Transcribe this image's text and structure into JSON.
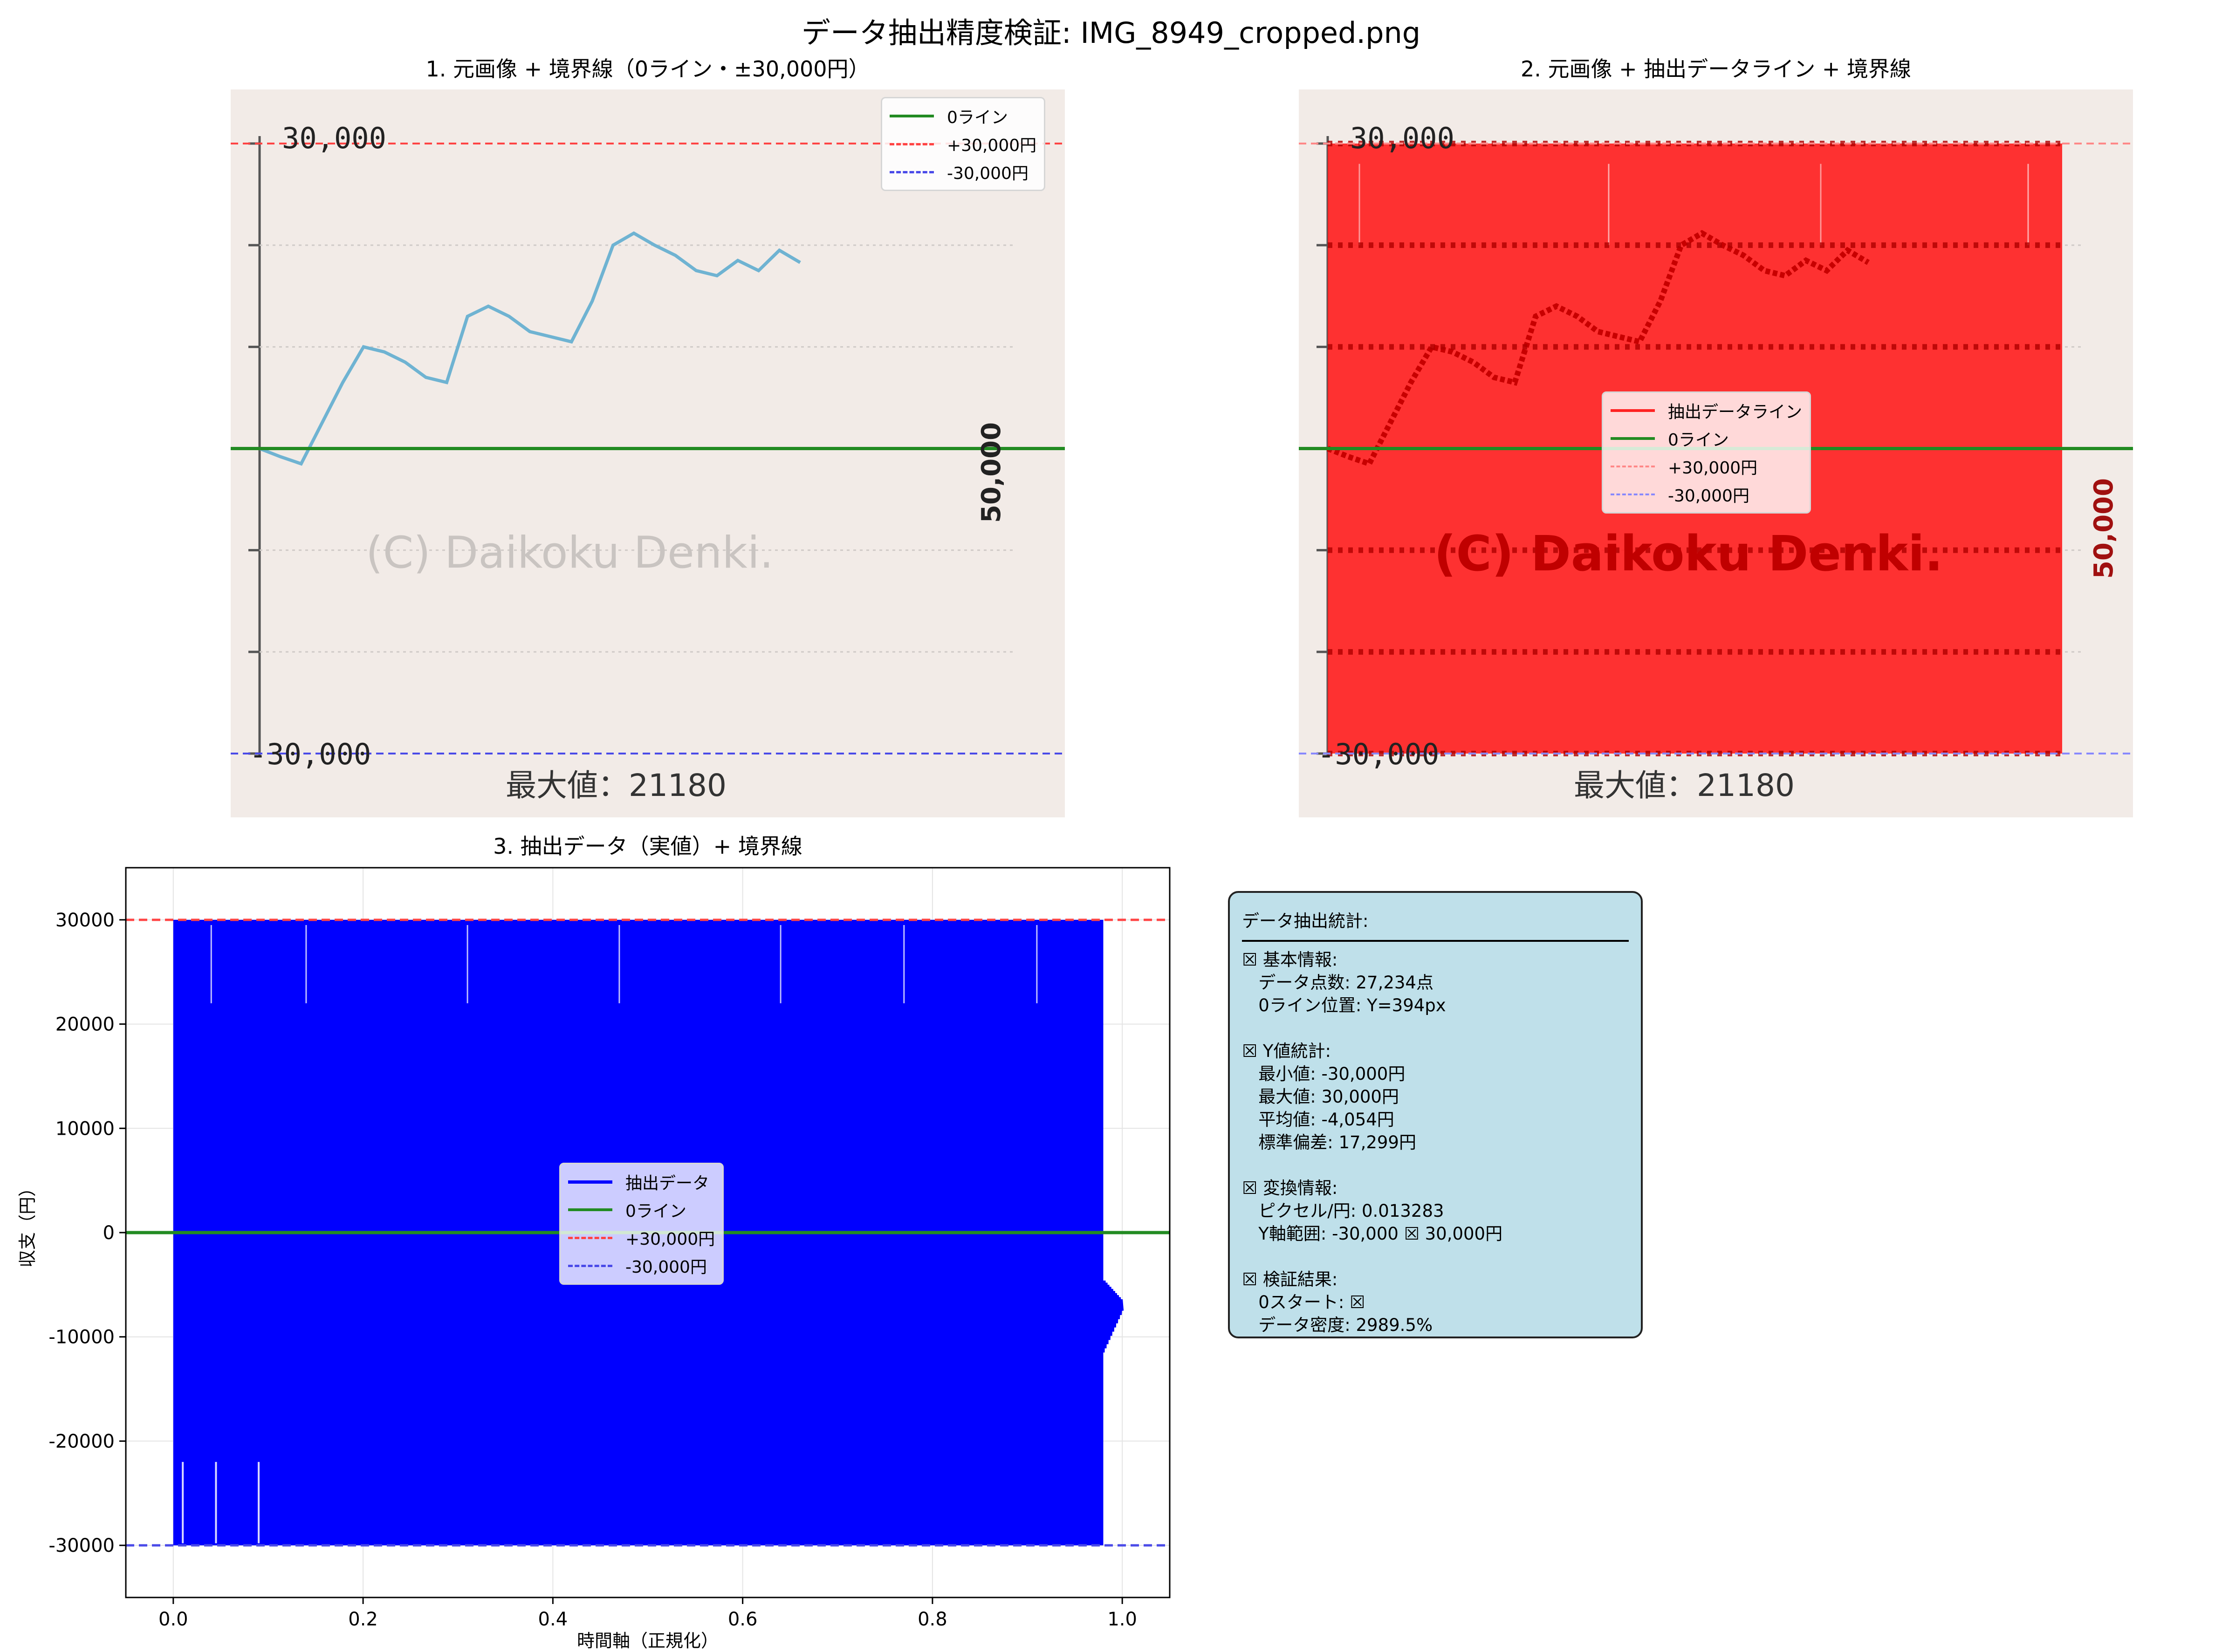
{
  "figure": {
    "title": "データ抽出精度検証: IMG_8949_cropped.png"
  },
  "panel1": {
    "title": "1. 元画像 + 境界線（0ライン・±30,000円）",
    "legend": [
      "0ライン",
      "+30,000円",
      "-30,000円"
    ],
    "image": {
      "top_label": "30,000",
      "bottom_label": "-30,000",
      "side_label": "50,000",
      "watermark": "(C) Daikoku Denki.",
      "max_label": "最大値：21180"
    }
  },
  "panel2": {
    "title": "2. 元画像 + 抽出データライン + 境界線",
    "legend": [
      "抽出データライン",
      "0ライン",
      "+30,000円",
      "-30,000円"
    ],
    "image": {
      "top_label": "30,000",
      "bottom_label": "-30,000",
      "side_label": "50,000",
      "watermark": "(C) Daikoku Denki.",
      "max_label": "最大値：21180"
    }
  },
  "panel3": {
    "title": "3. 抽出データ（実値）+ 境界線",
    "xlabel": "時間軸（正規化）",
    "ylabel": "収支（円）",
    "legend": [
      "抽出データ",
      "0ライン",
      "+30,000円",
      "-30,000円"
    ]
  },
  "stats": {
    "title": "データ抽出統計:",
    "lines": [
      "☒ 基本情報:",
      "   データ点数: 27,234点",
      "   0ライン位置: Y=394px",
      "",
      "☒ Y値統計:",
      "   最小値: -30,000円",
      "   最大値: 30,000円",
      "   平均値: -4,054円",
      "   標準偏差: 17,299円",
      "",
      "☒ 変換情報:",
      "   ピクセル/円: 0.013283",
      "   Y軸範囲: -30,000 ☒ 30,000円",
      "",
      "☒ 検証結果:",
      "   0スタート: ☒",
      "   データ密度: 2989.5%"
    ]
  },
  "chart_data": [
    {
      "type": "line",
      "panel": "source-image",
      "title": "1. 元画像 + 境界線（0ライン・±30,000円）",
      "ylim": [
        -30000,
        30000
      ],
      "hlines": [
        0,
        30000,
        -30000
      ],
      "series": [
        {
          "name": "",
          "values": [
            0,
            -800,
            -1500,
            2500,
            6500,
            10000,
            9500,
            8500,
            7000,
            6500,
            13000,
            14000,
            13000,
            11500,
            11000,
            10500,
            14500,
            20000,
            21180,
            20000,
            19000,
            17500,
            17000,
            18500,
            17500,
            19500,
            18300
          ]
        }
      ]
    },
    {
      "type": "line",
      "panel": "source-image-overlay",
      "title": "2. 元画像 + 抽出データライン + 境界線",
      "ylim": [
        -30000,
        30000
      ],
      "series": [
        {
          "name": "抽出データライン",
          "fill": "dense oscillation between -30000 and 30000"
        }
      ]
    },
    {
      "type": "line",
      "panel": "extracted",
      "title": "3. 抽出データ（実値）+ 境界線",
      "xlabel": "時間軸（正規化）",
      "ylabel": "収支（円）",
      "xlim": [
        -0.05,
        1.05
      ],
      "ylim": [
        -35000,
        35000
      ],
      "xticks": [
        0.0,
        0.2,
        0.4,
        0.6,
        0.8,
        1.0
      ],
      "yticks": [
        30000,
        20000,
        10000,
        0,
        -10000,
        -20000,
        -30000
      ],
      "hlines": [
        0,
        30000,
        -30000
      ],
      "series": [
        {
          "name": "抽出データ",
          "x_range": [
            0.0,
            0.98
          ],
          "y_range": [
            -30000,
            30000
          ],
          "tail": {
            "x": [
              0.98,
              1.0
            ],
            "y": [
              -10000,
              -5000
            ]
          }
        }
      ],
      "grid": true,
      "legend_position": "center"
    }
  ],
  "colors": {
    "data_blue": "#0000ff",
    "zero_green": "#228b22",
    "plus_red": "#ff4444",
    "minus_blue": "#4a4ae8",
    "overlay_red": "#ff2222",
    "curve": "#6fb3d2",
    "stats_bg": "#bfe0ea"
  }
}
